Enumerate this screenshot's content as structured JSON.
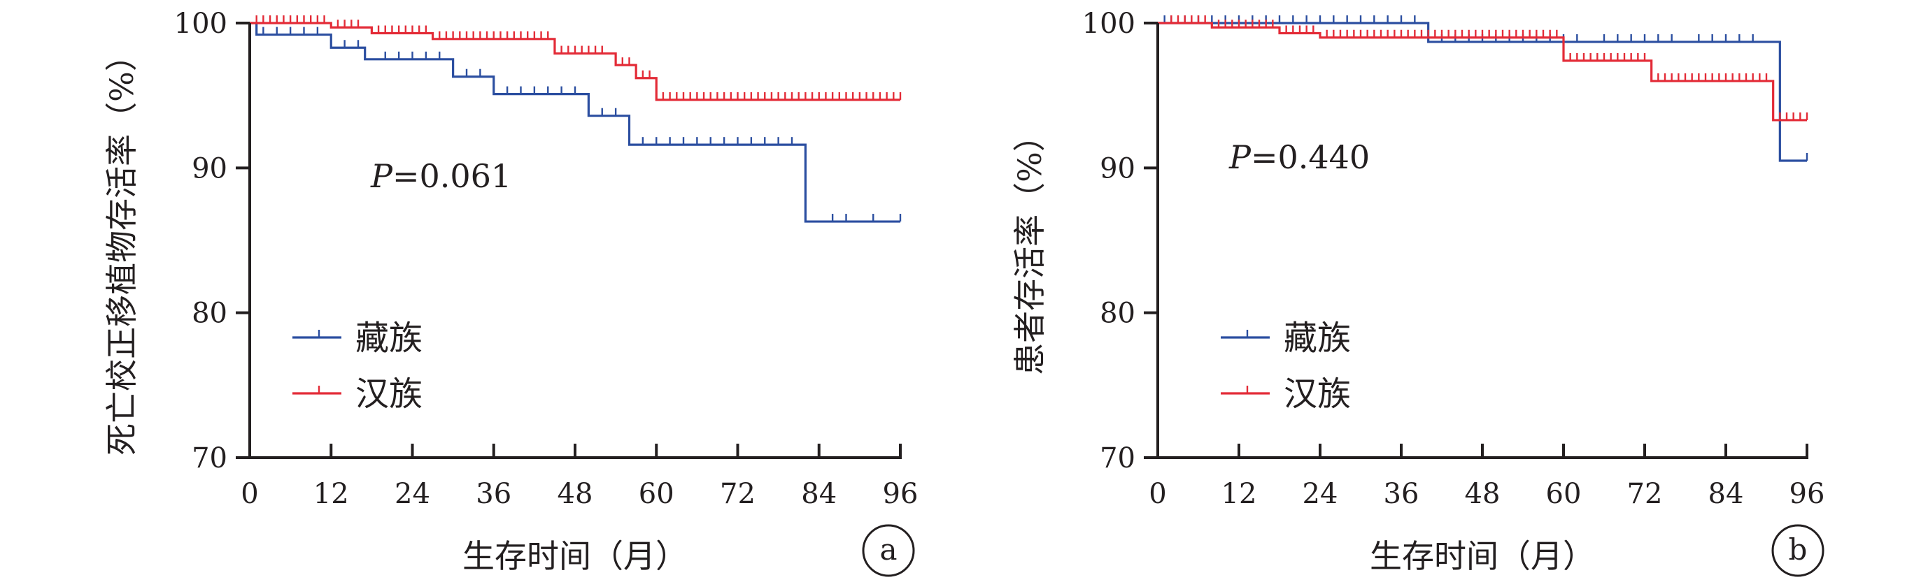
{
  "colors": {
    "tibetan": "#2b4ea0",
    "han": "#e32b37",
    "axis": "#231f20"
  },
  "chart_data": [
    {
      "type": "line",
      "subtype": "kaplan-meier step curve with censor marks",
      "panel_label": "a",
      "ylabel": "死亡校正移植物存活率（%）",
      "xlabel": "生存时间（月）",
      "xlim": [
        0,
        96
      ],
      "ylim": [
        70,
        100
      ],
      "xticks": [
        0,
        12,
        24,
        36,
        48,
        60,
        72,
        84,
        96
      ],
      "yticks": [
        70,
        80,
        90,
        100
      ],
      "annotation": {
        "italic": "P",
        "text": "=0.061"
      },
      "legend_position": "lower-left",
      "series": [
        {
          "name": "藏族",
          "color": "#2b4ea0",
          "steps": [
            [
              0,
              100
            ],
            [
              1,
              99.2
            ],
            [
              12,
              98.3
            ],
            [
              17,
              97.5
            ],
            [
              30,
              96.3
            ],
            [
              36,
              95.1
            ],
            [
              50,
              93.6
            ],
            [
              56,
              91.6
            ],
            [
              82,
              86.3
            ],
            [
              96,
              86.3
            ]
          ],
          "censored": [
            2,
            4,
            6,
            8,
            10,
            14,
            16,
            20,
            22,
            24,
            26,
            28,
            32,
            34,
            38,
            40,
            42,
            44,
            46,
            48,
            52,
            54,
            58,
            60,
            62,
            64,
            66,
            68,
            70,
            72,
            74,
            76,
            78,
            80,
            86,
            88,
            92,
            96
          ]
        },
        {
          "name": "汉族",
          "color": "#e32b37",
          "steps": [
            [
              0,
              100
            ],
            [
              12,
              99.7
            ],
            [
              18,
              99.3
            ],
            [
              27,
              98.9
            ],
            [
              45,
              97.9
            ],
            [
              54,
              97.1
            ],
            [
              57,
              96.2
            ],
            [
              60,
              94.7
            ],
            [
              96,
              94.7
            ]
          ],
          "censored": [
            1,
            2,
            3,
            4,
            5,
            6,
            7,
            8,
            9,
            10,
            11,
            13,
            14,
            15,
            16,
            19,
            20,
            21,
            22,
            23,
            24,
            25,
            26,
            28,
            29,
            30,
            31,
            32,
            33,
            34,
            35,
            36,
            37,
            38,
            39,
            40,
            41,
            42,
            43,
            44,
            46,
            47,
            48,
            49,
            50,
            51,
            52,
            55,
            56,
            58,
            59,
            61,
            62,
            63,
            64,
            65,
            66,
            67,
            68,
            69,
            70,
            71,
            72,
            73,
            74,
            75,
            76,
            77,
            78,
            79,
            80,
            81,
            82,
            83,
            84,
            85,
            86,
            87,
            88,
            89,
            90,
            91,
            92,
            93,
            94,
            95,
            96
          ]
        }
      ]
    },
    {
      "type": "line",
      "subtype": "kaplan-meier step curve with censor marks",
      "panel_label": "b",
      "ylabel": "患者存活率（%）",
      "xlabel": "生存时间（月）",
      "xlim": [
        0,
        96
      ],
      "ylim": [
        70,
        100
      ],
      "xticks": [
        0,
        12,
        24,
        36,
        48,
        60,
        72,
        84,
        96
      ],
      "yticks": [
        70,
        80,
        90,
        100
      ],
      "annotation": {
        "italic": "P",
        "text": "=0.440"
      },
      "legend_position": "lower-left",
      "series": [
        {
          "name": "藏族",
          "color": "#2b4ea0",
          "steps": [
            [
              0,
              100
            ],
            [
              40,
              98.7
            ],
            [
              92,
              90.5
            ],
            [
              96,
              90.5
            ]
          ],
          "censored": [
            1,
            2,
            4,
            6,
            8,
            10,
            12,
            14,
            16,
            18,
            20,
            22,
            24,
            26,
            28,
            30,
            32,
            34,
            36,
            38,
            42,
            44,
            46,
            48,
            50,
            52,
            54,
            56,
            58,
            60,
            62,
            66,
            68,
            70,
            72,
            74,
            76,
            80,
            82,
            84,
            86,
            88,
            96
          ]
        },
        {
          "name": "汉族",
          "color": "#e32b37",
          "steps": [
            [
              0,
              100
            ],
            [
              8,
              99.7
            ],
            [
              18,
              99.3
            ],
            [
              24,
              99.0
            ],
            [
              60,
              97.4
            ],
            [
              73,
              96.0
            ],
            [
              91,
              93.3
            ],
            [
              96,
              93.3
            ]
          ],
          "censored": [
            2,
            3,
            4,
            5,
            6,
            7,
            9,
            10,
            11,
            12,
            13,
            14,
            15,
            16,
            17,
            19,
            20,
            21,
            22,
            23,
            25,
            26,
            27,
            28,
            29,
            30,
            31,
            32,
            33,
            34,
            35,
            36,
            37,
            38,
            39,
            40,
            41,
            42,
            43,
            44,
            45,
            46,
            47,
            48,
            49,
            50,
            51,
            52,
            53,
            54,
            55,
            56,
            57,
            58,
            59,
            61,
            62,
            63,
            64,
            65,
            66,
            67,
            68,
            69,
            70,
            71,
            72,
            74,
            75,
            76,
            77,
            78,
            79,
            80,
            81,
            82,
            83,
            84,
            85,
            86,
            87,
            88,
            89,
            90,
            92,
            93,
            94,
            95,
            96
          ]
        }
      ]
    }
  ]
}
